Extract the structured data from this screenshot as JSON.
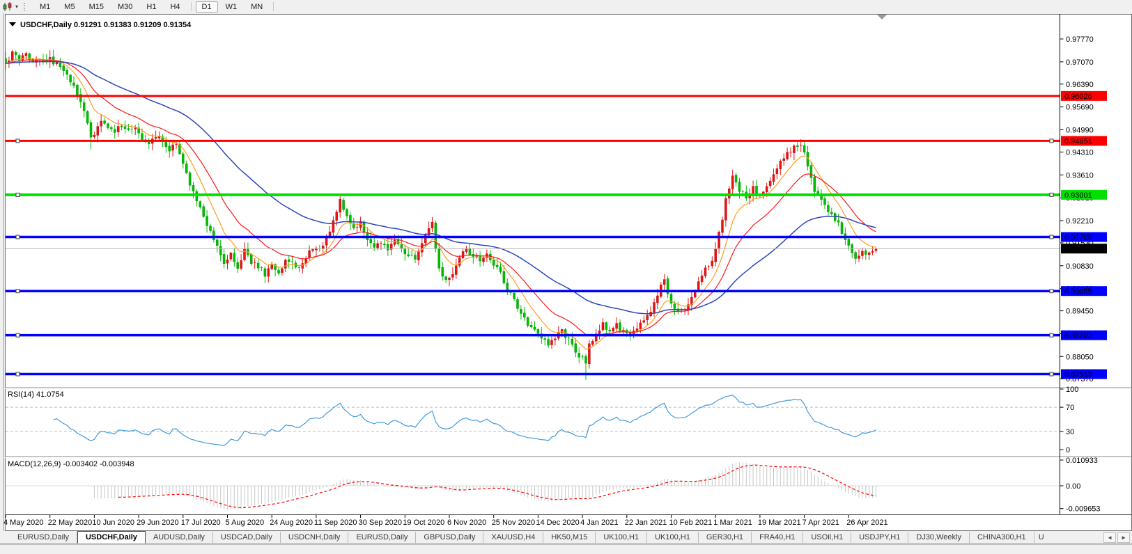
{
  "toolbar": {
    "dropdown_caret": "▾",
    "timeframes": [
      "M1",
      "M5",
      "M15",
      "M30",
      "H1",
      "H4",
      "D1",
      "W1",
      "MN"
    ],
    "active_timeframe": "D1"
  },
  "chart": {
    "title_text": "USDCHF,Daily  0.91291 0.91383 0.91209 0.91354",
    "symbol": "USDCHF",
    "period": "Daily"
  },
  "chart_data": {
    "type": "candlestick",
    "symbol": "USDCHF",
    "timeframe": "Daily",
    "last_bar_ohlc": [
      0.91291,
      0.91383,
      0.91209,
      0.91354
    ],
    "bars_total": 256,
    "x_axis": {
      "bars_per_tick": 13,
      "tick_labels": [
        "4 May 2020",
        "22 May 2020",
        "10 Jun 2020",
        "29 Jun 2020",
        "17 Jul 2020",
        "5 Aug 2020",
        "24 Aug 2020",
        "11 Sep 2020",
        "30 Sep 2020",
        "19 Oct 2020",
        "6 Nov 2020",
        "25 Nov 2020",
        "14 Dec 2020",
        "4 Jan 2021",
        "22 Jan 2021",
        "10 Feb 2021",
        "1 Mar 2021",
        "19 Mar 2021",
        "7 Apr 2021",
        "26 Apr 2021"
      ]
    },
    "y_axis": {
      "range": [
        0.8712,
        0.9843
      ],
      "ticks": [
        "0.97770",
        "0.97070",
        "0.96390",
        "0.95690",
        "0.94990",
        "0.94310",
        "0.93610",
        "0.92910",
        "0.92210",
        "0.91530",
        "0.90830",
        "0.90130",
        "0.89450",
        "0.88750",
        "0.88050",
        "0.87370"
      ]
    },
    "price_path_anchors": [
      [
        0,
        0.97
      ],
      [
        2,
        0.9738
      ],
      [
        4,
        0.9716
      ],
      [
        6,
        0.9728
      ],
      [
        8,
        0.971
      ],
      [
        10,
        0.9722
      ],
      [
        13,
        0.9712
      ],
      [
        15,
        0.9698
      ],
      [
        17,
        0.968
      ],
      [
        19,
        0.965
      ],
      [
        21,
        0.961
      ],
      [
        23,
        0.9555
      ],
      [
        25,
        0.9468
      ],
      [
        26,
        0.949
      ],
      [
        28,
        0.952
      ],
      [
        30,
        0.9505
      ],
      [
        32,
        0.9498
      ],
      [
        34,
        0.9512
      ],
      [
        36,
        0.9495
      ],
      [
        38,
        0.9512
      ],
      [
        40,
        0.9478
      ],
      [
        42,
        0.946
      ],
      [
        44,
        0.9478
      ],
      [
        46,
        0.9466
      ],
      [
        48,
        0.9442
      ],
      [
        50,
        0.945
      ],
      [
        52,
        0.9396
      ],
      [
        54,
        0.933
      ],
      [
        56,
        0.9285
      ],
      [
        58,
        0.9235
      ],
      [
        60,
        0.9182
      ],
      [
        62,
        0.9148
      ],
      [
        64,
        0.9088
      ],
      [
        66,
        0.9122
      ],
      [
        68,
        0.908
      ],
      [
        70,
        0.9128
      ],
      [
        72,
        0.9098
      ],
      [
        74,
        0.908
      ],
      [
        76,
        0.9055
      ],
      [
        78,
        0.9092
      ],
      [
        80,
        0.9052
      ],
      [
        82,
        0.9105
      ],
      [
        84,
        0.909
      ],
      [
        86,
        0.9075
      ],
      [
        88,
        0.9112
      ],
      [
        90,
        0.9136
      ],
      [
        92,
        0.913
      ],
      [
        94,
        0.917
      ],
      [
        96,
        0.9215
      ],
      [
        98,
        0.9286
      ],
      [
        100,
        0.9238
      ],
      [
        102,
        0.92
      ],
      [
        104,
        0.9212
      ],
      [
        106,
        0.9162
      ],
      [
        108,
        0.9145
      ],
      [
        110,
        0.9158
      ],
      [
        112,
        0.913
      ],
      [
        114,
        0.9162
      ],
      [
        116,
        0.914
      ],
      [
        118,
        0.911
      ],
      [
        120,
        0.9105
      ],
      [
        122,
        0.9148
      ],
      [
        124,
        0.9205
      ],
      [
        125,
        0.9215
      ],
      [
        127,
        0.907
      ],
      [
        129,
        0.9042
      ],
      [
        131,
        0.906
      ],
      [
        133,
        0.9112
      ],
      [
        135,
        0.9128
      ],
      [
        137,
        0.9115
      ],
      [
        139,
        0.91
      ],
      [
        141,
        0.9112
      ],
      [
        143,
        0.9092
      ],
      [
        145,
        0.9062
      ],
      [
        147,
        0.9012
      ],
      [
        149,
        0.8976
      ],
      [
        151,
        0.893
      ],
      [
        153,
        0.8906
      ],
      [
        155,
        0.8884
      ],
      [
        157,
        0.8862
      ],
      [
        159,
        0.8842
      ],
      [
        161,
        0.8864
      ],
      [
        163,
        0.8888
      ],
      [
        165,
        0.8852
      ],
      [
        167,
        0.882
      ],
      [
        169,
        0.88
      ],
      [
        170,
        0.8792
      ],
      [
        171,
        0.8842
      ],
      [
        173,
        0.8874
      ],
      [
        175,
        0.8902
      ],
      [
        177,
        0.8886
      ],
      [
        179,
        0.8904
      ],
      [
        181,
        0.888
      ],
      [
        183,
        0.8866
      ],
      [
        185,
        0.8896
      ],
      [
        187,
        0.8912
      ],
      [
        189,
        0.894
      ],
      [
        191,
        0.8998
      ],
      [
        193,
        0.904
      ],
      [
        195,
        0.8968
      ],
      [
        197,
        0.894
      ],
      [
        199,
        0.8946
      ],
      [
        201,
        0.8986
      ],
      [
        203,
        0.9036
      ],
      [
        205,
        0.9078
      ],
      [
        207,
        0.91
      ],
      [
        209,
        0.918
      ],
      [
        211,
        0.9282
      ],
      [
        213,
        0.9355
      ],
      [
        215,
        0.9315
      ],
      [
        217,
        0.9295
      ],
      [
        219,
        0.9318
      ],
      [
        221,
        0.9292
      ],
      [
        223,
        0.933
      ],
      [
        225,
        0.9368
      ],
      [
        227,
        0.9405
      ],
      [
        229,
        0.9432
      ],
      [
        231,
        0.9445
      ],
      [
        233,
        0.9452
      ],
      [
        235,
        0.9395
      ],
      [
        237,
        0.9315
      ],
      [
        239,
        0.9285
      ],
      [
        241,
        0.9255
      ],
      [
        243,
        0.9228
      ],
      [
        245,
        0.9188
      ],
      [
        247,
        0.914
      ],
      [
        249,
        0.9102
      ],
      [
        251,
        0.912
      ],
      [
        253,
        0.9128
      ],
      [
        255,
        0.91354
      ]
    ],
    "bar_overrides": [
      [
        25,
        null,
        0.9438
      ],
      [
        98,
        0.9296,
        null
      ],
      [
        170,
        null,
        0.8734
      ],
      [
        233,
        0.947,
        null
      ]
    ],
    "up_color": "#E81414",
    "down_color": "#00BE00",
    "moving_averages": [
      {
        "name": "fast",
        "type": "ema",
        "period": 9,
        "color": "#FF9C1E",
        "width": 1.2
      },
      {
        "name": "medium",
        "type": "ema",
        "period": 20,
        "color": "#FF1414",
        "width": 1.2
      },
      {
        "name": "slow",
        "type": "ema",
        "period": 55,
        "color": "#2C46BE",
        "width": 1.5
      }
    ],
    "horizontal_lines": [
      {
        "label": "0.96026",
        "price": 0.96026,
        "color": "#FF0000",
        "width": 3,
        "selected": false,
        "text_color": "#FFFFFF"
      },
      {
        "label": "0.94651",
        "price": 0.94651,
        "color": "#FF0000",
        "width": 3,
        "selected": true,
        "text_color": "#FFFFFF"
      },
      {
        "label": "0.93001",
        "price": 0.93001,
        "color": "#00E000",
        "width": 4,
        "selected": true,
        "text_color": "#000000"
      },
      {
        "label": "0.91709",
        "price": 0.91709,
        "color": "#0000FF",
        "width": 3.5,
        "selected": true,
        "text_color": "#FFFFFF"
      },
      {
        "label": "0.90055",
        "price": 0.90055,
        "color": "#0000FF",
        "width": 3.5,
        "selected": true,
        "text_color": "#FFFFFF"
      },
      {
        "label": "0.88703",
        "price": 0.88703,
        "color": "#0000FF",
        "width": 3.5,
        "selected": true,
        "text_color": "#FFFFFF"
      },
      {
        "label": "0.87513",
        "price": 0.87513,
        "color": "#0000FF",
        "width": 3.5,
        "selected": true,
        "text_color": "#FFFFFF"
      }
    ],
    "current_price_line": {
      "label": "0.91354",
      "price": 0.91354,
      "line_color": "#B4B4B4",
      "label_bg": "#000000",
      "text_color": "#FFFFFF"
    },
    "rsi": {
      "label": "RSI(14) 41.0754",
      "period": 14,
      "value": 41.0754,
      "axis": [
        "100",
        "70",
        "30",
        "0"
      ],
      "levels": [
        70,
        30
      ],
      "color": "#3F9BDD"
    },
    "macd": {
      "label": "MACD(12,26,9) -0.003402 -0.003948",
      "fast": 12,
      "slow": 26,
      "signal": 9,
      "macd_value": -0.003402,
      "signal_value": -0.003948,
      "axis": [
        "0.010933",
        "0.00",
        "-0.009653"
      ],
      "histogram_color": "#C8C8C8",
      "signal_color": "#FF0000"
    },
    "shift_marker": true
  },
  "tabs": {
    "items": [
      "EURUSD,Daily",
      "USDCHF,Daily",
      "AUDUSD,Daily",
      "USDCAD,Daily",
      "USDCNH,Daily",
      "EURUSD,Daily",
      "GBPUSD,Daily",
      "XAUUSD,H4",
      "HK50,M15",
      "UK100,H1",
      "UK100,H1",
      "GER30,H1",
      "FRA40,H1",
      "USOil,H1",
      "USDJPY,H1",
      "DJ30,Weekly",
      "CHINA300,H1"
    ],
    "active_index": 1,
    "overflow_label": "U",
    "scroll_left": "◄",
    "scroll_right": "►"
  }
}
